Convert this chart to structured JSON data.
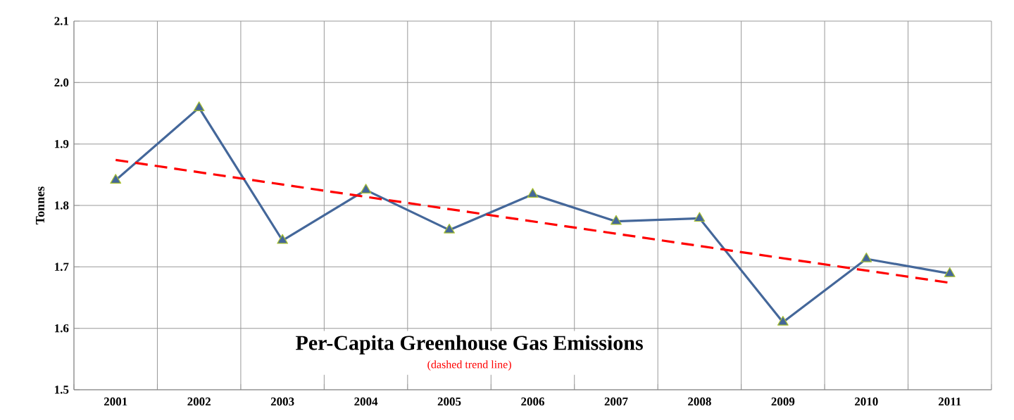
{
  "chart_data": {
    "type": "line",
    "title": "Per-Capita Greenhouse Gas Emissions",
    "subtitle": "(dashed trend line)",
    "ylabel": "Tonnes",
    "categories": [
      "2001",
      "2002",
      "2003",
      "2004",
      "2005",
      "2006",
      "2007",
      "2008",
      "2009",
      "2010",
      "2011"
    ],
    "series": [
      {
        "color": "#44679a",
        "values": [
          1.841,
          1.959,
          1.743,
          1.825,
          1.76,
          1.818,
          1.774,
          1.779,
          1.61,
          1.713,
          1.689
        ],
        "marker": "triangle",
        "line_style": "solid"
      },
      {
        "type": "line",
        "color": "#ff0000",
        "values": [
          1.874,
          null,
          null,
          null,
          null,
          null,
          null,
          null,
          null,
          null,
          1.674
        ],
        "marker": "none",
        "line_style": "dashed"
      }
    ],
    "ylim": [
      1.5,
      2.1
    ],
    "yticks": [
      {
        "value": 1.5,
        "label": "1.5"
      },
      {
        "value": 1.6,
        "label": "1.6"
      },
      {
        "value": 1.7,
        "label": "1.7"
      },
      {
        "value": 1.8,
        "label": "1.8"
      },
      {
        "value": 1.9,
        "label": "1.9"
      },
      {
        "value": 2.0,
        "label": "2.0"
      },
      {
        "value": 2.1,
        "label": "2.1"
      }
    ],
    "grid": true
  }
}
